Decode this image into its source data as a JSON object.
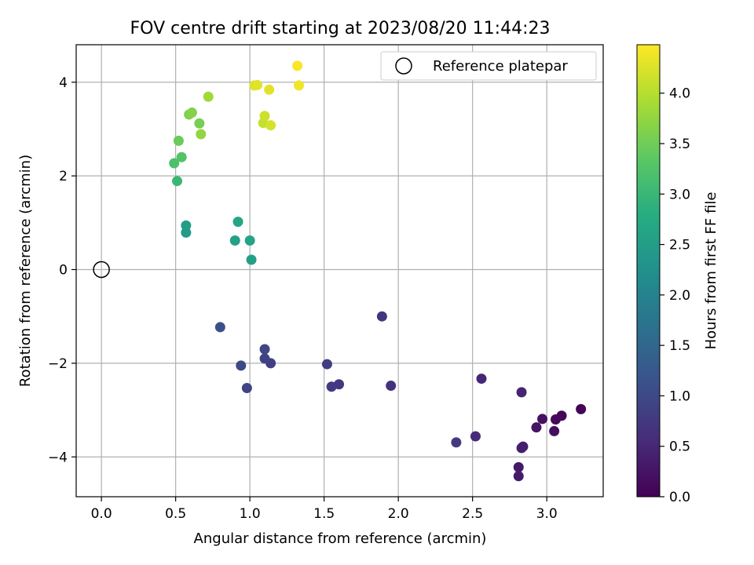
{
  "chart_data": {
    "type": "scatter",
    "title": "FOV centre drift starting at 2023/08/20 11:44:23",
    "xlabel": "Angular distance from reference (arcmin)",
    "ylabel": "Rotation from reference (arcmin)",
    "xlim": [
      -0.17,
      3.38
    ],
    "ylim": [
      -4.85,
      4.8
    ],
    "x_ticks": [
      "0.0",
      "0.5",
      "1.0",
      "1.5",
      "2.0",
      "2.5",
      "3.0"
    ],
    "y_ticks": [
      "−4",
      "−2",
      "0",
      "2",
      "4"
    ],
    "grid": true,
    "legend": {
      "position": "top-right",
      "entries": [
        "Reference platepar"
      ]
    },
    "reference_point": {
      "x": 0,
      "y": 0,
      "marker": "open-circle",
      "color": "#000000"
    },
    "colorbar": {
      "label": "Hours from first FF file",
      "colormap": "viridis",
      "range": [
        0.0,
        4.48
      ],
      "ticks": [
        "0.0",
        "0.5",
        "1.0",
        "1.5",
        "2.0",
        "2.5",
        "3.0",
        "3.5",
        "4.0"
      ]
    },
    "points": [
      {
        "x": 3.23,
        "y": -2.98,
        "c": 0.05
      },
      {
        "x": 3.1,
        "y": -3.12,
        "c": 0.08
      },
      {
        "x": 3.06,
        "y": -3.2,
        "c": 0.12
      },
      {
        "x": 3.05,
        "y": -3.45,
        "c": 0.15
      },
      {
        "x": 2.97,
        "y": -3.19,
        "c": 0.2
      },
      {
        "x": 2.93,
        "y": -3.37,
        "c": 0.25
      },
      {
        "x": 2.81,
        "y": -4.22,
        "c": 0.3
      },
      {
        "x": 2.81,
        "y": -4.41,
        "c": 0.33
      },
      {
        "x": 2.83,
        "y": -3.81,
        "c": 0.37
      },
      {
        "x": 2.84,
        "y": -3.78,
        "c": 0.4
      },
      {
        "x": 2.83,
        "y": -2.62,
        "c": 0.45
      },
      {
        "x": 2.56,
        "y": -2.33,
        "c": 0.5
      },
      {
        "x": 2.52,
        "y": -3.56,
        "c": 0.55
      },
      {
        "x": 2.39,
        "y": -3.69,
        "c": 0.75
      },
      {
        "x": 1.95,
        "y": -2.48,
        "c": 0.65
      },
      {
        "x": 1.89,
        "y": -1.0,
        "c": 0.7
      },
      {
        "x": 1.6,
        "y": -2.45,
        "c": 0.72
      },
      {
        "x": 1.55,
        "y": -2.5,
        "c": 0.78
      },
      {
        "x": 1.52,
        "y": -2.02,
        "c": 0.8
      },
      {
        "x": 1.14,
        "y": -2.0,
        "c": 0.85
      },
      {
        "x": 1.1,
        "y": -1.9,
        "c": 0.9
      },
      {
        "x": 1.1,
        "y": -1.7,
        "c": 0.95
      },
      {
        "x": 0.98,
        "y": -2.53,
        "c": 0.92
      },
      {
        "x": 0.94,
        "y": -2.05,
        "c": 1.0
      },
      {
        "x": 0.8,
        "y": -1.23,
        "c": 1.1
      },
      {
        "x": 0.57,
        "y": 0.79,
        "c": 2.45
      },
      {
        "x": 0.57,
        "y": 0.94,
        "c": 2.5
      },
      {
        "x": 0.9,
        "y": 0.62,
        "c": 2.55
      },
      {
        "x": 1.0,
        "y": 0.62,
        "c": 2.6
      },
      {
        "x": 1.01,
        "y": 0.21,
        "c": 2.55
      },
      {
        "x": 0.92,
        "y": 1.02,
        "c": 2.65
      },
      {
        "x": 0.51,
        "y": 1.89,
        "c": 3.0
      },
      {
        "x": 0.49,
        "y": 2.27,
        "c": 3.2
      },
      {
        "x": 0.54,
        "y": 2.4,
        "c": 3.25
      },
      {
        "x": 0.52,
        "y": 2.75,
        "c": 3.45
      },
      {
        "x": 0.66,
        "y": 3.12,
        "c": 3.55
      },
      {
        "x": 0.59,
        "y": 3.31,
        "c": 3.6
      },
      {
        "x": 0.61,
        "y": 3.35,
        "c": 3.65
      },
      {
        "x": 0.67,
        "y": 2.89,
        "c": 3.75
      },
      {
        "x": 0.72,
        "y": 3.69,
        "c": 3.85
      },
      {
        "x": 1.09,
        "y": 3.13,
        "c": 4.1
      },
      {
        "x": 1.1,
        "y": 3.28,
        "c": 4.15
      },
      {
        "x": 1.14,
        "y": 3.08,
        "c": 4.2
      },
      {
        "x": 1.03,
        "y": 3.93,
        "c": 4.25
      },
      {
        "x": 1.05,
        "y": 3.94,
        "c": 4.28
      },
      {
        "x": 1.13,
        "y": 3.84,
        "c": 4.3
      },
      {
        "x": 1.33,
        "y": 3.93,
        "c": 4.4
      },
      {
        "x": 1.32,
        "y": 4.35,
        "c": 4.45
      }
    ]
  }
}
